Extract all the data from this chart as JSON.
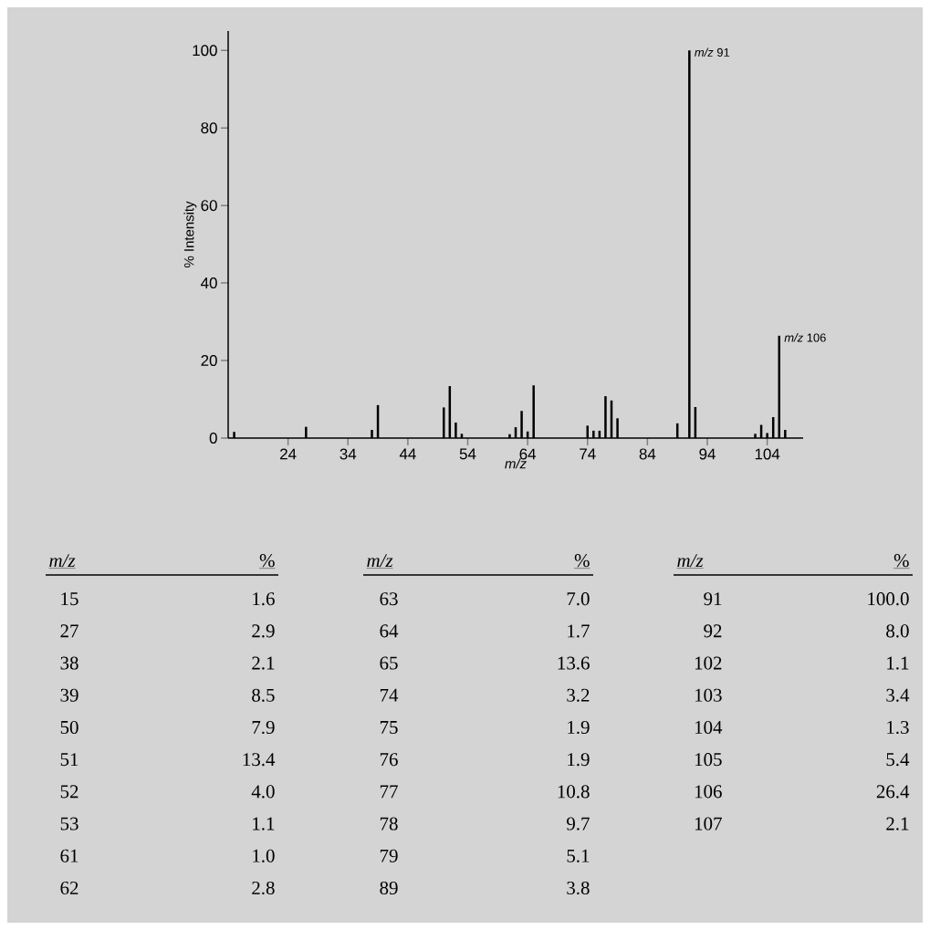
{
  "chart_data": {
    "type": "bar",
    "xlabel": "m/z",
    "ylabel": "% Intensity",
    "color": "#000000",
    "x": [
      15,
      27,
      38,
      39,
      50,
      51,
      52,
      53,
      61,
      62,
      63,
      64,
      65,
      74,
      75,
      76,
      77,
      78,
      79,
      89,
      91,
      92,
      102,
      103,
      104,
      105,
      106,
      107
    ],
    "values": [
      1.6,
      2.9,
      2.1,
      8.5,
      7.9,
      13.4,
      4.0,
      1.1,
      1.0,
      2.8,
      7.0,
      1.7,
      13.6,
      3.2,
      1.9,
      1.9,
      10.8,
      9.7,
      5.1,
      3.8,
      100.0,
      8.0,
      1.1,
      3.4,
      1.3,
      5.4,
      26.4,
      2.1
    ],
    "xlim": [
      14,
      110
    ],
    "xticks": [
      24,
      34,
      44,
      54,
      64,
      74,
      84,
      94,
      104
    ],
    "ylim": [
      0,
      105
    ],
    "yticks": [
      0,
      20,
      40,
      60,
      80,
      100
    ],
    "annotations": [
      {
        "text": "*m/z* 91",
        "x": 91,
        "y": 100
      },
      {
        "text": "*m/z* 106",
        "x": 106,
        "y": 26.4
      },
      "*m/z*",
      "%",
      "15",
      "1.6",
      "27",
      "2.9",
      "38",
      "2.1",
      "39",
      "8.5",
      "50",
      "7.9",
      "51",
      "13.4",
      "52",
      "4.0",
      "53",
      "1.1",
      "61",
      "1.0",
      "62",
      "2.8",
      "63",
      "7.0",
      "64",
      "1.7",
      "65",
      "13.6",
      "74",
      "3.2",
      "75",
      "1.9",
      "76",
      "1.9",
      "77",
      "10.8",
      "78",
      "9.7",
      "79",
      "5.1",
      "89",
      "3.8",
      "91",
      "100.0",
      "92",
      "8.0",
      "102",
      "1.1",
      "103",
      "3.4",
      "104",
      "1.3",
      "105",
      "5.4",
      "106",
      "26.4",
      "107",
      "2.1"
    ]
  }
}
